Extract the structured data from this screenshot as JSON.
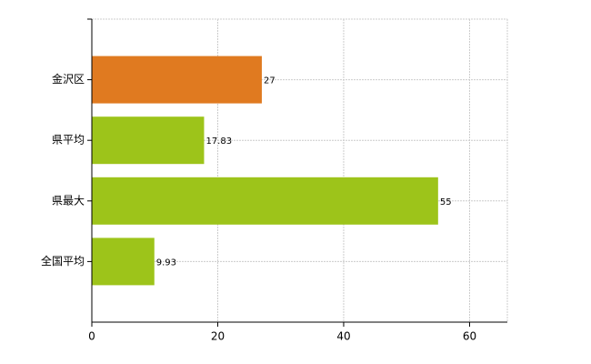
{
  "chart_data": {
    "type": "hbar",
    "categories": [
      "金沢区",
      "県平均",
      "県最大",
      "全国平均"
    ],
    "values": [
      27,
      17.83,
      55,
      9.93
    ],
    "colors": [
      "#e07a20",
      "#9dc41a",
      "#9dc41a",
      "#9dc41a"
    ],
    "xlim": [
      0,
      66
    ],
    "xticks": [
      0,
      20,
      40,
      60
    ],
    "grid": true
  }
}
